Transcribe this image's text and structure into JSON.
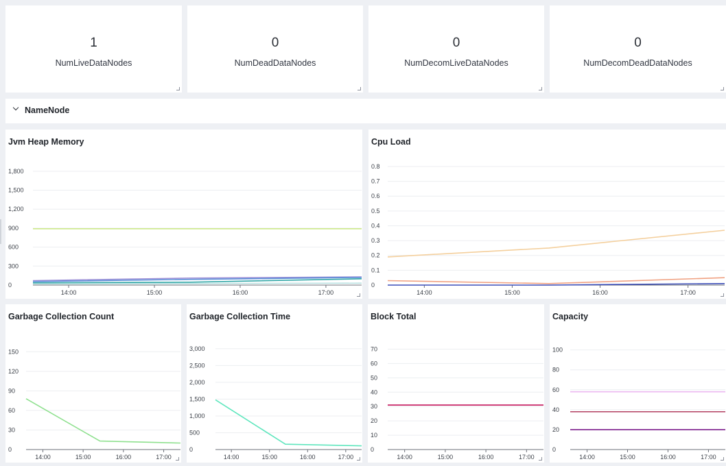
{
  "stats": [
    {
      "value": "1",
      "label": "NumLiveDataNodes"
    },
    {
      "value": "0",
      "label": "NumDeadDataNodes"
    },
    {
      "value": "0",
      "label": "NumDecomLiveDataNodes"
    },
    {
      "value": "0",
      "label": "NumDecomDeadDataNodes"
    }
  ],
  "row": {
    "title": "NameNode",
    "collapse_icon": "chevron-down-icon"
  },
  "resize_icon": "resize-handle-icon",
  "chart_data": [
    {
      "id": "jvm",
      "type": "line",
      "title": "Jvm Heap Memory",
      "xlabel": "",
      "ylabel": "",
      "x_ticks": [
        "14:00",
        "15:00",
        "16:00",
        "17:00"
      ],
      "y_ticks": [
        "0",
        "300",
        "600",
        "900",
        "1,200",
        "1,500",
        "1,800"
      ],
      "ylim": [
        0,
        1950
      ],
      "grid": true,
      "series": [
        {
          "color": "#cde98a",
          "x": [
            "13:35",
            "15:25",
            "17:25"
          ],
          "values": [
            890,
            890,
            890
          ]
        },
        {
          "color": "#9b8ed6",
          "x": [
            "13:35",
            "15:25",
            "17:25"
          ],
          "values": [
            70,
            110,
            130
          ]
        },
        {
          "color": "#5b8fd8",
          "x": [
            "13:35",
            "15:25",
            "17:25"
          ],
          "values": [
            55,
            90,
            120
          ]
        },
        {
          "color": "#2fa6a6",
          "x": [
            "13:35",
            "15:25",
            "17:25"
          ],
          "values": [
            35,
            45,
            100
          ]
        },
        {
          "color": "#b8e0e0",
          "x": [
            "13:35",
            "15:25",
            "17:25"
          ],
          "values": [
            20,
            25,
            30
          ]
        }
      ]
    },
    {
      "id": "cpu",
      "type": "line",
      "title": "Cpu Load",
      "xlabel": "",
      "ylabel": "",
      "x_ticks": [
        "14:00",
        "15:00",
        "16:00",
        "17:00"
      ],
      "y_ticks": [
        "0",
        "0.1",
        "0.2",
        "0.3",
        "0.4",
        "0.5",
        "0.6",
        "0.7",
        "0.8"
      ],
      "ylim": [
        0,
        0.86
      ],
      "grid": true,
      "series": [
        {
          "color": "#f4cf9c",
          "x": [
            "13:35",
            "15:25",
            "17:25"
          ],
          "values": [
            0.19,
            0.25,
            0.37
          ]
        },
        {
          "color": "#f0a080",
          "x": [
            "13:35",
            "15:25",
            "17:25"
          ],
          "values": [
            0.03,
            0.01,
            0.05
          ]
        },
        {
          "color": "#3a4cb8",
          "x": [
            "13:35",
            "15:25",
            "17:25"
          ],
          "values": [
            0.0,
            0.0,
            0.01
          ]
        }
      ]
    },
    {
      "id": "gcc",
      "type": "line",
      "title": "Garbage Collection Count",
      "xlabel": "",
      "ylabel": "",
      "x_ticks": [
        "14:00",
        "15:00",
        "16:00",
        "17:00"
      ],
      "y_ticks": [
        "0",
        "30",
        "60",
        "90",
        "120",
        "150"
      ],
      "ylim": [
        0,
        165
      ],
      "grid": true,
      "series": [
        {
          "color": "#8ee08e",
          "x": [
            "13:35",
            "15:25",
            "17:25"
          ],
          "values": [
            78,
            13,
            10
          ]
        }
      ]
    },
    {
      "id": "gct",
      "type": "line",
      "title": "Garbage Collection Time",
      "xlabel": "",
      "ylabel": "",
      "x_ticks": [
        "14:00",
        "15:00",
        "16:00",
        "17:00"
      ],
      "y_ticks": [
        "0",
        "500",
        "1,000",
        "1,500",
        "2,000",
        "2,500",
        "3,000"
      ],
      "ylim": [
        0,
        3200
      ],
      "grid": true,
      "series": [
        {
          "color": "#5ee6bd",
          "x": [
            "13:35",
            "15:25",
            "17:25"
          ],
          "values": [
            1480,
            160,
            110
          ]
        }
      ]
    },
    {
      "id": "block",
      "type": "line",
      "title": "Block Total",
      "xlabel": "",
      "ylabel": "",
      "x_ticks": [
        "14:00",
        "15:00",
        "16:00",
        "17:00"
      ],
      "y_ticks": [
        "0",
        "10",
        "20",
        "30",
        "40",
        "50",
        "60",
        "70"
      ],
      "ylim": [
        0,
        75
      ],
      "grid": true,
      "series": [
        {
          "color": "#c4145a",
          "x": [
            "13:35",
            "15:25",
            "17:25"
          ],
          "values": [
            31,
            31,
            31
          ]
        }
      ]
    },
    {
      "id": "capacity",
      "type": "line",
      "title": "Capacity",
      "xlabel": "",
      "ylabel": "",
      "x_ticks": [
        "14:00",
        "15:00",
        "16:00",
        "17:00"
      ],
      "y_ticks": [
        "0",
        "20",
        "40",
        "60",
        "80",
        "100"
      ],
      "ylim": [
        0,
        108
      ],
      "grid": true,
      "series": [
        {
          "color": "#ecb8f0",
          "x": [
            "13:35",
            "15:25",
            "17:25"
          ],
          "values": [
            58,
            58,
            58
          ]
        },
        {
          "color": "#b84a6a",
          "x": [
            "13:35",
            "15:25",
            "17:25"
          ],
          "values": [
            38,
            38,
            38
          ]
        },
        {
          "color": "#7a1a8a",
          "x": [
            "13:35",
            "15:25",
            "17:25"
          ],
          "values": [
            20,
            20,
            20
          ]
        }
      ]
    }
  ]
}
